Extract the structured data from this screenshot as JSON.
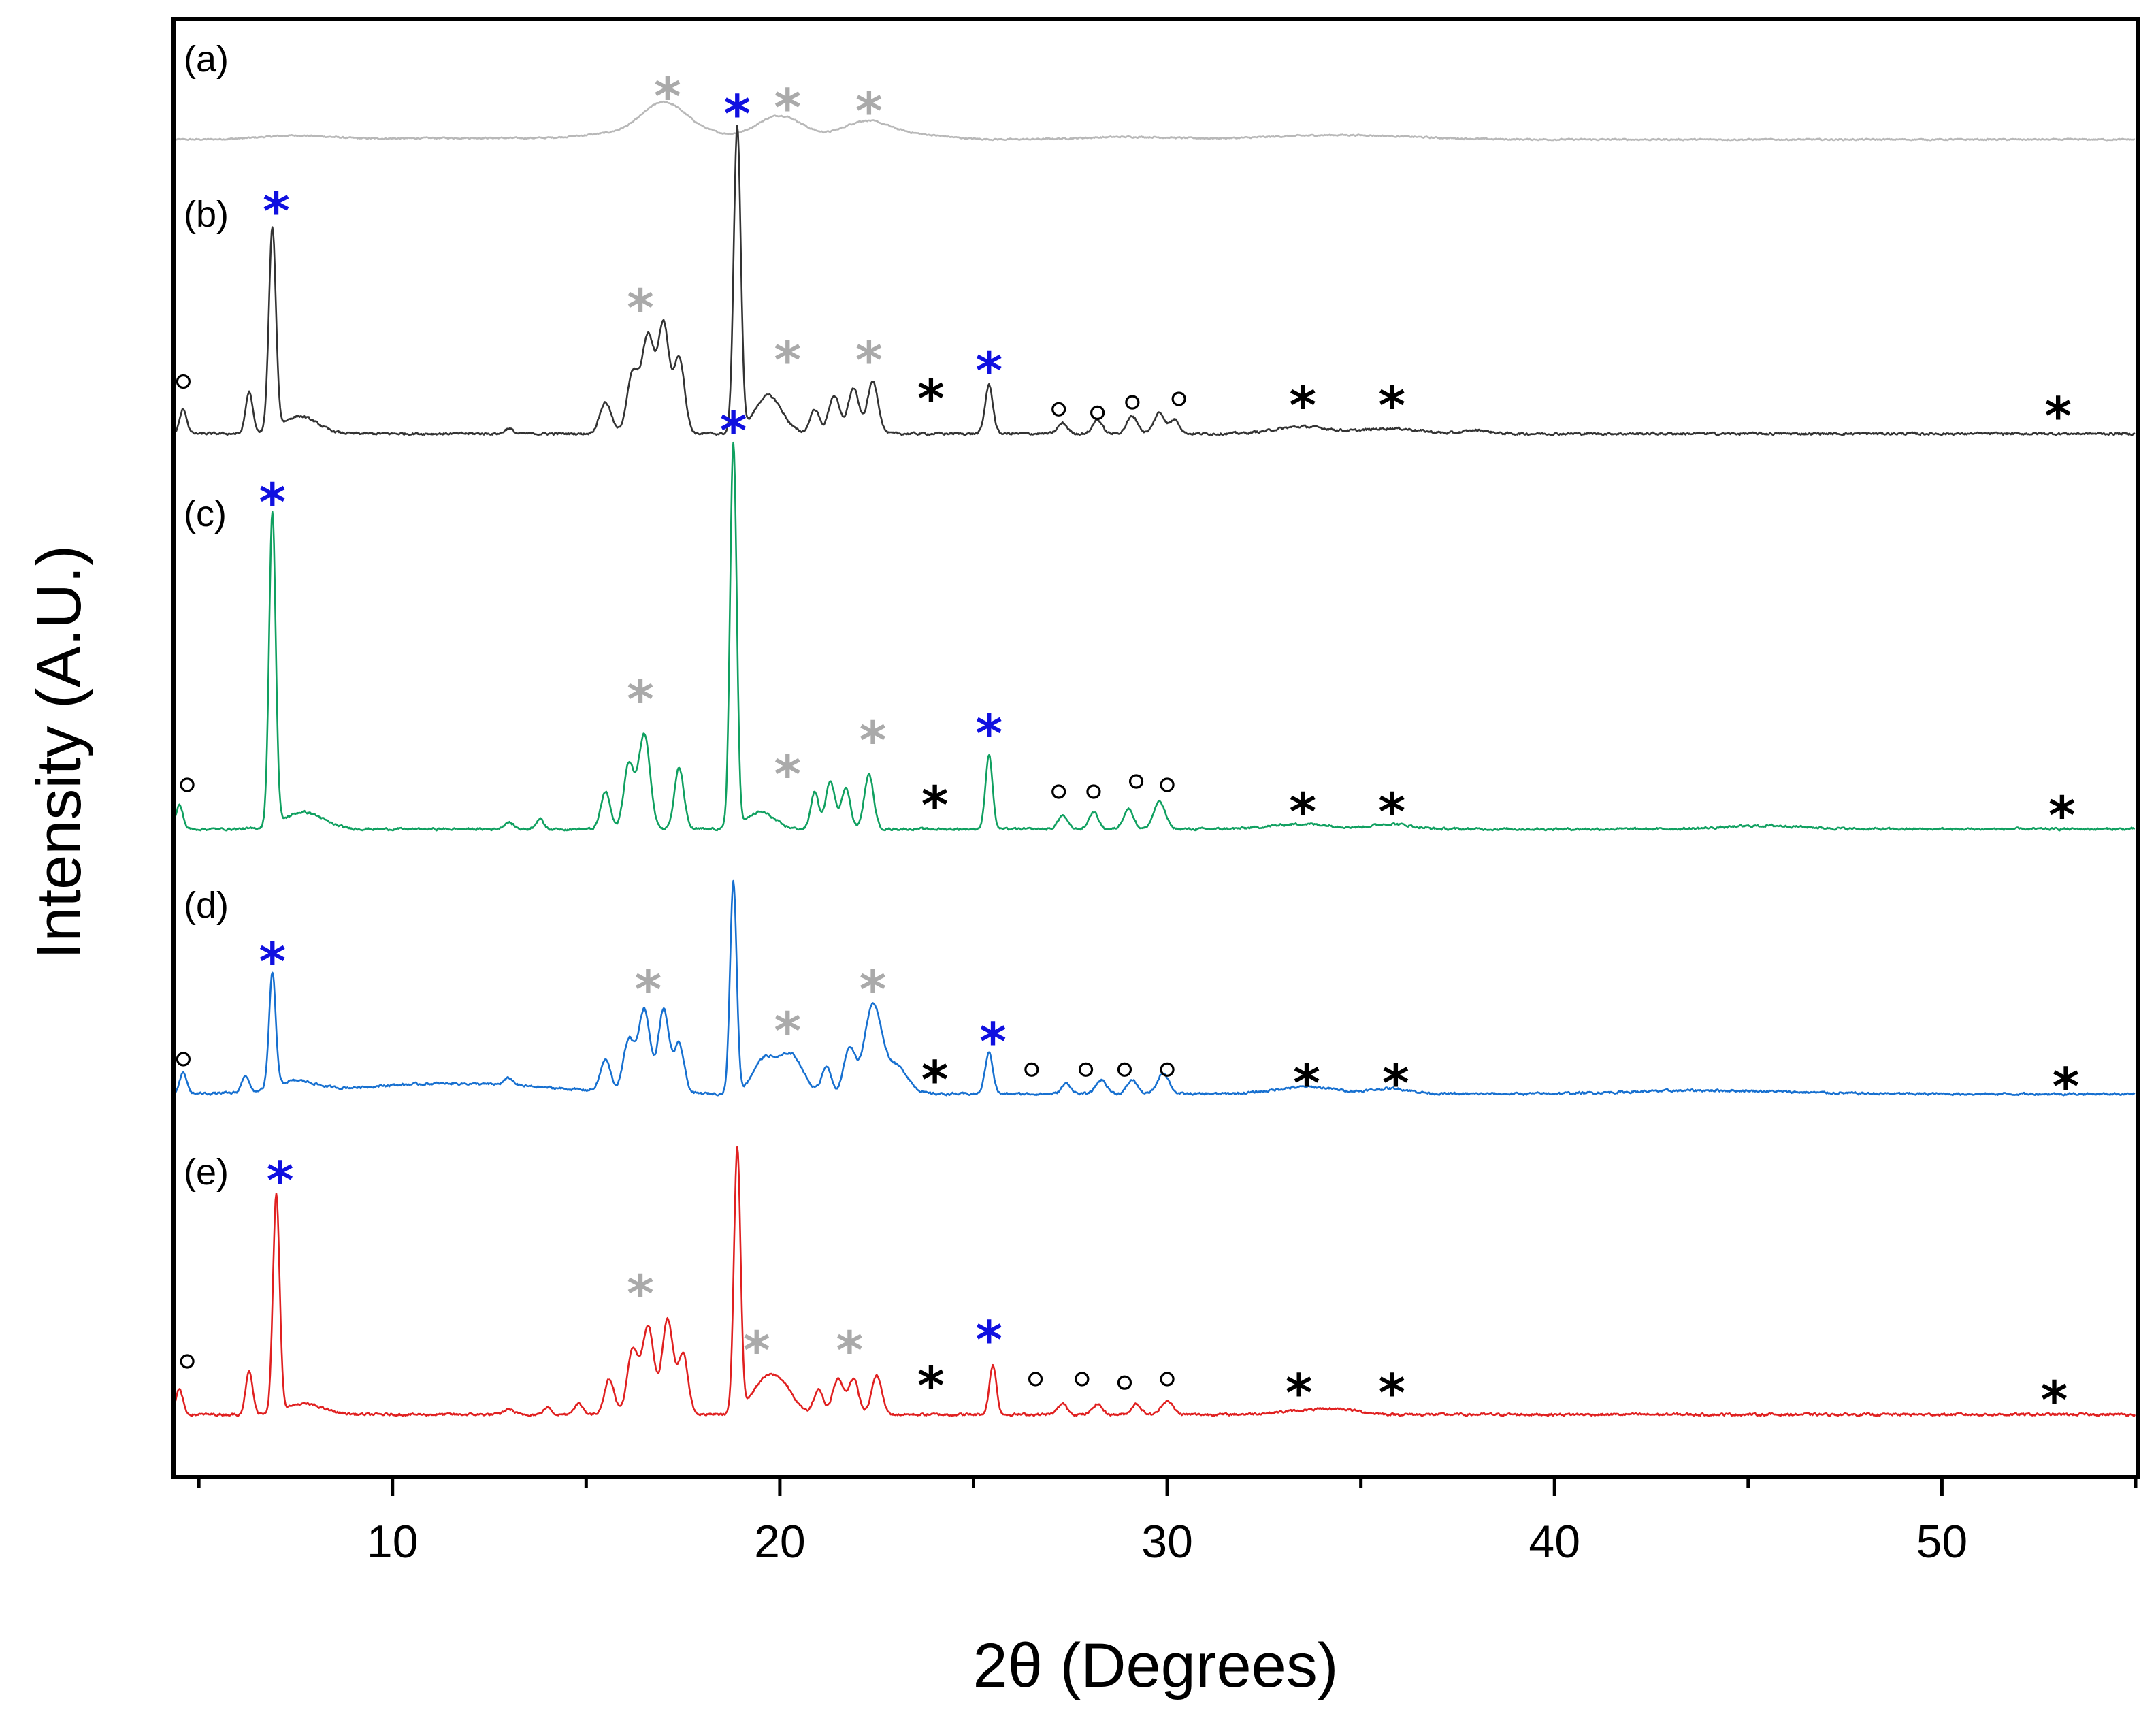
{
  "chart_data": {
    "type": "line",
    "title": "",
    "xlabel": "2θ (Degrees)",
    "ylabel": "Intensity (A.U.)",
    "xlim": [
      4.4,
      55
    ],
    "xticks": [
      10,
      20,
      30,
      40,
      50
    ],
    "yticks": [],
    "grid": false,
    "legend": "none",
    "marker_types": {
      "star": "*",
      "circle": "○"
    },
    "series": [
      {
        "label": "(a)",
        "color": "#b8b8b8",
        "baseline": 0.98,
        "noise": 0.004,
        "peaks": [
          [
            7.5,
            0.012,
            0.9
          ],
          [
            12.0,
            0.005,
            2.0
          ],
          [
            16.0,
            0.02,
            1.0
          ],
          [
            17.0,
            0.1,
            0.55
          ],
          [
            18.0,
            0.02,
            0.6
          ],
          [
            20.0,
            0.075,
            0.6
          ],
          [
            22.2,
            0.055,
            0.6
          ],
          [
            23.5,
            0.015,
            0.8
          ],
          [
            29.0,
            0.008,
            1.2
          ],
          [
            34.5,
            0.014,
            1.8
          ]
        ],
        "markers": [
          {
            "x": 17.1,
            "y": 0.155,
            "type": "star",
            "color": "#aaaaaa"
          },
          {
            "x": 20.2,
            "y": 0.12,
            "type": "star",
            "color": "#aaaaaa"
          },
          {
            "x": 22.3,
            "y": 0.11,
            "type": "star",
            "color": "#aaaaaa"
          }
        ]
      },
      {
        "label": "(b)",
        "color": "#333333",
        "baseline": 0.0,
        "noise": 0.006,
        "peaks": [
          [
            4.6,
            0.07,
            0.09
          ],
          [
            6.3,
            0.12,
            0.09
          ],
          [
            6.9,
            0.58,
            0.09
          ],
          [
            7.6,
            0.05,
            0.45
          ],
          [
            13.0,
            0.015,
            0.1
          ],
          [
            15.5,
            0.09,
            0.15
          ],
          [
            16.2,
            0.17,
            0.15
          ],
          [
            16.6,
            0.28,
            0.16
          ],
          [
            17.0,
            0.31,
            0.14
          ],
          [
            17.4,
            0.22,
            0.14
          ],
          [
            18.9,
            0.88,
            0.09
          ],
          [
            19.7,
            0.11,
            0.35
          ],
          [
            20.9,
            0.07,
            0.12
          ],
          [
            21.4,
            0.11,
            0.14
          ],
          [
            21.9,
            0.13,
            0.14
          ],
          [
            22.4,
            0.15,
            0.14
          ],
          [
            25.4,
            0.14,
            0.1
          ],
          [
            27.3,
            0.03,
            0.12
          ],
          [
            28.2,
            0.04,
            0.12
          ],
          [
            29.1,
            0.05,
            0.14
          ],
          [
            29.8,
            0.06,
            0.14
          ],
          [
            30.2,
            0.04,
            0.12
          ],
          [
            33.5,
            0.02,
            0.7
          ],
          [
            35.8,
            0.015,
            0.7
          ],
          [
            38.0,
            0.01,
            0.3
          ]
        ],
        "markers": [
          {
            "x": 4.6,
            "y": 0.15,
            "type": "circle",
            "color": "#000000"
          },
          {
            "x": 7.0,
            "y": 0.66,
            "type": "star",
            "color": "#1010e0"
          },
          {
            "x": 16.4,
            "y": 0.38,
            "type": "star",
            "color": "#aaaaaa"
          },
          {
            "x": 18.9,
            "y": 0.94,
            "type": "star",
            "color": "#1010e0"
          },
          {
            "x": 20.2,
            "y": 0.23,
            "type": "star",
            "color": "#aaaaaa"
          },
          {
            "x": 22.3,
            "y": 0.23,
            "type": "star",
            "color": "#aaaaaa"
          },
          {
            "x": 23.9,
            "y": 0.12,
            "type": "star",
            "color": "#000000"
          },
          {
            "x": 25.4,
            "y": 0.2,
            "type": "star",
            "color": "#1010e0"
          },
          {
            "x": 27.2,
            "y": 0.07,
            "type": "circle",
            "color": "#000000"
          },
          {
            "x": 28.2,
            "y": 0.06,
            "type": "circle",
            "color": "#000000"
          },
          {
            "x": 29.1,
            "y": 0.09,
            "type": "circle",
            "color": "#000000"
          },
          {
            "x": 30.3,
            "y": 0.1,
            "type": "circle",
            "color": "#000000"
          },
          {
            "x": 33.5,
            "y": 0.1,
            "type": "star",
            "color": "#000000"
          },
          {
            "x": 35.8,
            "y": 0.1,
            "type": "star",
            "color": "#000000"
          },
          {
            "x": 53.0,
            "y": 0.07,
            "type": "star",
            "color": "#000000"
          }
        ]
      },
      {
        "label": "(c)",
        "color": "#10a060",
        "baseline": 0.0,
        "noise": 0.006,
        "peaks": [
          [
            4.5,
            0.07,
            0.09
          ],
          [
            6.9,
            0.92,
            0.085
          ],
          [
            7.7,
            0.05,
            0.5
          ],
          [
            13.0,
            0.02,
            0.12
          ],
          [
            13.8,
            0.03,
            0.1
          ],
          [
            15.5,
            0.11,
            0.12
          ],
          [
            16.1,
            0.19,
            0.13
          ],
          [
            16.5,
            0.28,
            0.15
          ],
          [
            17.4,
            0.18,
            0.12
          ],
          [
            18.8,
            1.13,
            0.085
          ],
          [
            19.5,
            0.05,
            0.35
          ],
          [
            20.9,
            0.11,
            0.1
          ],
          [
            21.3,
            0.14,
            0.12
          ],
          [
            21.7,
            0.12,
            0.12
          ],
          [
            22.3,
            0.16,
            0.12
          ],
          [
            25.4,
            0.22,
            0.09
          ],
          [
            27.3,
            0.04,
            0.12
          ],
          [
            28.1,
            0.05,
            0.12
          ],
          [
            29.0,
            0.06,
            0.13
          ],
          [
            29.8,
            0.08,
            0.15
          ],
          [
            33.5,
            0.015,
            0.8
          ],
          [
            35.8,
            0.015,
            0.5
          ],
          [
            45.5,
            0.01,
            1.0
          ]
        ],
        "markers": [
          {
            "x": 4.7,
            "y": 0.13,
            "type": "circle",
            "color": "#000000"
          },
          {
            "x": 6.9,
            "y": 0.98,
            "type": "star",
            "color": "#1010e0"
          },
          {
            "x": 16.4,
            "y": 0.4,
            "type": "star",
            "color": "#aaaaaa"
          },
          {
            "x": 18.8,
            "y": 1.19,
            "type": "star",
            "color": "#1010e0"
          },
          {
            "x": 20.2,
            "y": 0.18,
            "type": "star",
            "color": "#aaaaaa"
          },
          {
            "x": 22.4,
            "y": 0.28,
            "type": "star",
            "color": "#aaaaaa"
          },
          {
            "x": 24.0,
            "y": 0.09,
            "type": "star",
            "color": "#000000"
          },
          {
            "x": 25.4,
            "y": 0.3,
            "type": "star",
            "color": "#1010e0"
          },
          {
            "x": 27.2,
            "y": 0.11,
            "type": "circle",
            "color": "#000000"
          },
          {
            "x": 28.1,
            "y": 0.11,
            "type": "circle",
            "color": "#000000"
          },
          {
            "x": 29.2,
            "y": 0.14,
            "type": "circle",
            "color": "#000000"
          },
          {
            "x": 30.0,
            "y": 0.13,
            "type": "circle",
            "color": "#000000"
          },
          {
            "x": 33.5,
            "y": 0.07,
            "type": "star",
            "color": "#000000"
          },
          {
            "x": 35.8,
            "y": 0.07,
            "type": "star",
            "color": "#000000"
          },
          {
            "x": 53.1,
            "y": 0.06,
            "type": "star",
            "color": "#000000"
          }
        ]
      },
      {
        "label": "(d)",
        "color": "#1770d0",
        "baseline": 0.0,
        "noise": 0.006,
        "peaks": [
          [
            4.6,
            0.06,
            0.09
          ],
          [
            6.2,
            0.05,
            0.09
          ],
          [
            6.9,
            0.33,
            0.085
          ],
          [
            7.5,
            0.03,
            0.5
          ],
          [
            11.5,
            0.03,
            2.5
          ],
          [
            13.0,
            0.02,
            0.12
          ],
          [
            15.5,
            0.09,
            0.13
          ],
          [
            16.1,
            0.15,
            0.14
          ],
          [
            16.5,
            0.24,
            0.15
          ],
          [
            17.0,
            0.24,
            0.14
          ],
          [
            17.4,
            0.14,
            0.13
          ],
          [
            18.8,
            0.61,
            0.085
          ],
          [
            19.6,
            0.1,
            0.3
          ],
          [
            20.3,
            0.11,
            0.3
          ],
          [
            21.2,
            0.08,
            0.12
          ],
          [
            21.8,
            0.13,
            0.15
          ],
          [
            22.4,
            0.25,
            0.22
          ],
          [
            23.0,
            0.08,
            0.3
          ],
          [
            25.4,
            0.12,
            0.1
          ],
          [
            27.4,
            0.03,
            0.12
          ],
          [
            28.3,
            0.04,
            0.14
          ],
          [
            29.1,
            0.04,
            0.13
          ],
          [
            29.9,
            0.06,
            0.15
          ],
          [
            33.6,
            0.02,
            0.8
          ],
          [
            35.8,
            0.015,
            0.5
          ],
          [
            44.0,
            0.01,
            2.0
          ]
        ],
        "markers": [
          {
            "x": 4.6,
            "y": 0.1,
            "type": "circle",
            "color": "#000000"
          },
          {
            "x": 6.9,
            "y": 0.4,
            "type": "star",
            "color": "#1010e0"
          },
          {
            "x": 16.6,
            "y": 0.32,
            "type": "star",
            "color": "#aaaaaa"
          },
          {
            "x": 20.2,
            "y": 0.2,
            "type": "star",
            "color": "#aaaaaa"
          },
          {
            "x": 22.4,
            "y": 0.32,
            "type": "star",
            "color": "#aaaaaa"
          },
          {
            "x": 24.0,
            "y": 0.06,
            "type": "star",
            "color": "#000000"
          },
          {
            "x": 25.5,
            "y": 0.17,
            "type": "star",
            "color": "#1010e0"
          },
          {
            "x": 26.5,
            "y": 0.07,
            "type": "circle",
            "color": "#000000"
          },
          {
            "x": 27.9,
            "y": 0.07,
            "type": "circle",
            "color": "#000000"
          },
          {
            "x": 28.9,
            "y": 0.07,
            "type": "circle",
            "color": "#000000"
          },
          {
            "x": 30.0,
            "y": 0.07,
            "type": "circle",
            "color": "#000000"
          },
          {
            "x": 33.6,
            "y": 0.05,
            "type": "star",
            "color": "#000000"
          },
          {
            "x": 35.9,
            "y": 0.05,
            "type": "star",
            "color": "#000000"
          },
          {
            "x": 53.2,
            "y": 0.04,
            "type": "star",
            "color": "#000000"
          }
        ]
      },
      {
        "label": "(e)",
        "color": "#e02020",
        "baseline": 0.0,
        "noise": 0.006,
        "peaks": [
          [
            4.5,
            0.07,
            0.09
          ],
          [
            6.3,
            0.12,
            0.09
          ],
          [
            7.0,
            0.61,
            0.085
          ],
          [
            7.7,
            0.03,
            0.5
          ],
          [
            13.0,
            0.015,
            0.12
          ],
          [
            14.0,
            0.02,
            0.1
          ],
          [
            14.8,
            0.03,
            0.12
          ],
          [
            15.6,
            0.1,
            0.13
          ],
          [
            16.2,
            0.18,
            0.14
          ],
          [
            16.6,
            0.25,
            0.15
          ],
          [
            17.1,
            0.27,
            0.14
          ],
          [
            17.5,
            0.17,
            0.13
          ],
          [
            18.9,
            0.74,
            0.085
          ],
          [
            19.6,
            0.09,
            0.35
          ],
          [
            20.1,
            0.06,
            0.3
          ],
          [
            21.0,
            0.07,
            0.12
          ],
          [
            21.5,
            0.1,
            0.14
          ],
          [
            21.9,
            0.1,
            0.13
          ],
          [
            22.5,
            0.11,
            0.13
          ],
          [
            25.5,
            0.14,
            0.09
          ],
          [
            27.3,
            0.03,
            0.12
          ],
          [
            28.2,
            0.03,
            0.12
          ],
          [
            29.2,
            0.03,
            0.12
          ],
          [
            30.0,
            0.04,
            0.14
          ],
          [
            33.5,
            0.01,
            0.7
          ],
          [
            34.5,
            0.012,
            0.5
          ]
        ],
        "markers": [
          {
            "x": 4.7,
            "y": 0.15,
            "type": "circle",
            "color": "#000000"
          },
          {
            "x": 7.1,
            "y": 0.68,
            "type": "star",
            "color": "#1010e0"
          },
          {
            "x": 16.4,
            "y": 0.36,
            "type": "star",
            "color": "#aaaaaa"
          },
          {
            "x": 19.4,
            "y": 0.2,
            "type": "star",
            "color": "#aaaaaa"
          },
          {
            "x": 21.8,
            "y": 0.2,
            "type": "star",
            "color": "#aaaaaa"
          },
          {
            "x": 23.9,
            "y": 0.1,
            "type": "star",
            "color": "#000000"
          },
          {
            "x": 25.4,
            "y": 0.23,
            "type": "star",
            "color": "#1010e0"
          },
          {
            "x": 26.6,
            "y": 0.1,
            "type": "circle",
            "color": "#000000"
          },
          {
            "x": 27.8,
            "y": 0.1,
            "type": "circle",
            "color": "#000000"
          },
          {
            "x": 28.9,
            "y": 0.09,
            "type": "circle",
            "color": "#000000"
          },
          {
            "x": 30.0,
            "y": 0.1,
            "type": "circle",
            "color": "#000000"
          },
          {
            "x": 33.4,
            "y": 0.08,
            "type": "star",
            "color": "#000000"
          },
          {
            "x": 35.8,
            "y": 0.08,
            "type": "star",
            "color": "#000000"
          },
          {
            "x": 52.9,
            "y": 0.06,
            "type": "star",
            "color": "#000000"
          }
        ]
      }
    ]
  }
}
